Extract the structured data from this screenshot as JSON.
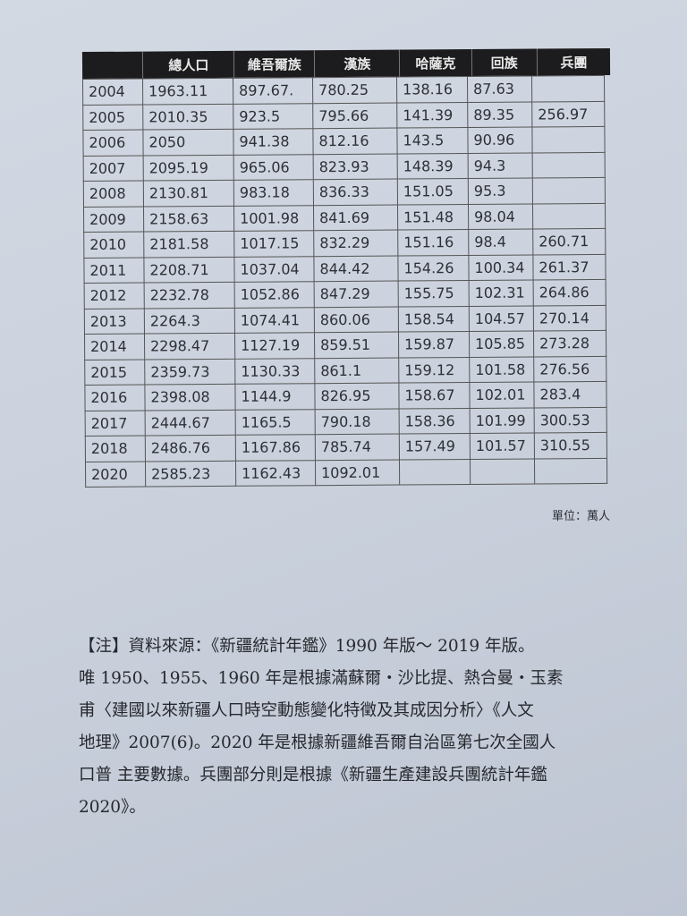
{
  "table": {
    "headers": [
      "",
      "總人口",
      "維吾爾族",
      "漢族",
      "哈薩克",
      "回族",
      "兵團"
    ],
    "rows": [
      [
        "2004",
        "1963.11",
        "897.67.",
        "780.25",
        "138.16",
        "87.63",
        ""
      ],
      [
        "2005",
        "2010.35",
        "923.5",
        "795.66",
        "141.39",
        "89.35",
        "256.97"
      ],
      [
        "2006",
        "2050",
        "941.38",
        "812.16",
        "143.5",
        "90.96",
        ""
      ],
      [
        "2007",
        "2095.19",
        "965.06",
        "823.93",
        "148.39",
        "94.3",
        ""
      ],
      [
        "2008",
        "2130.81",
        "983.18",
        "836.33",
        "151.05",
        "95.3",
        ""
      ],
      [
        "2009",
        "2158.63",
        "1001.98",
        "841.69",
        "151.48",
        "98.04",
        ""
      ],
      [
        "2010",
        "2181.58",
        "1017.15",
        "832.29",
        "151.16",
        "98.4",
        "260.71"
      ],
      [
        "2011",
        "2208.71",
        "1037.04",
        "844.42",
        "154.26",
        "100.34",
        "261.37"
      ],
      [
        "2012",
        "2232.78",
        "1052.86",
        "847.29",
        "155.75",
        "102.31",
        "264.86"
      ],
      [
        "2013",
        "2264.3",
        "1074.41",
        "860.06",
        "158.54",
        "104.57",
        "270.14"
      ],
      [
        "2014",
        "2298.47",
        "1127.19",
        "859.51",
        "159.87",
        "105.85",
        "273.28"
      ],
      [
        "2015",
        "2359.73",
        "1130.33",
        "861.1",
        "159.12",
        "101.58",
        "276.56"
      ],
      [
        "2016",
        "2398.08",
        "1144.9",
        "826.95",
        "158.67",
        "102.01",
        "283.4"
      ],
      [
        "2017",
        "2444.67",
        "1165.5",
        "790.18",
        "158.36",
        "101.99",
        "300.53"
      ],
      [
        "2018",
        "2486.76",
        "1167.86",
        "785.74",
        "157.49",
        "101.57",
        "310.55"
      ],
      [
        "2020",
        "2585.23",
        "1162.43",
        "1092.01",
        "",
        "",
        ""
      ]
    ]
  },
  "unit": "單位：萬人",
  "notes": [
    "【注】資料來源：《新疆統計年鑑》1990 年版～ 2019 年版。",
    "唯 1950、1955、1960 年是根據滿蘇爾・沙比提、熱合曼・玉素",
    "甫〈建國以來新疆人口時空動態變化特徵及其成因分析〉《人文",
    "地理》2007(6)。2020 年是根據新疆維吾爾自治區第七次全國人",
    "口普 主要數據。兵團部分則是根據《新疆生產建設兵團統計年鑑",
    "2020》。"
  ]
}
